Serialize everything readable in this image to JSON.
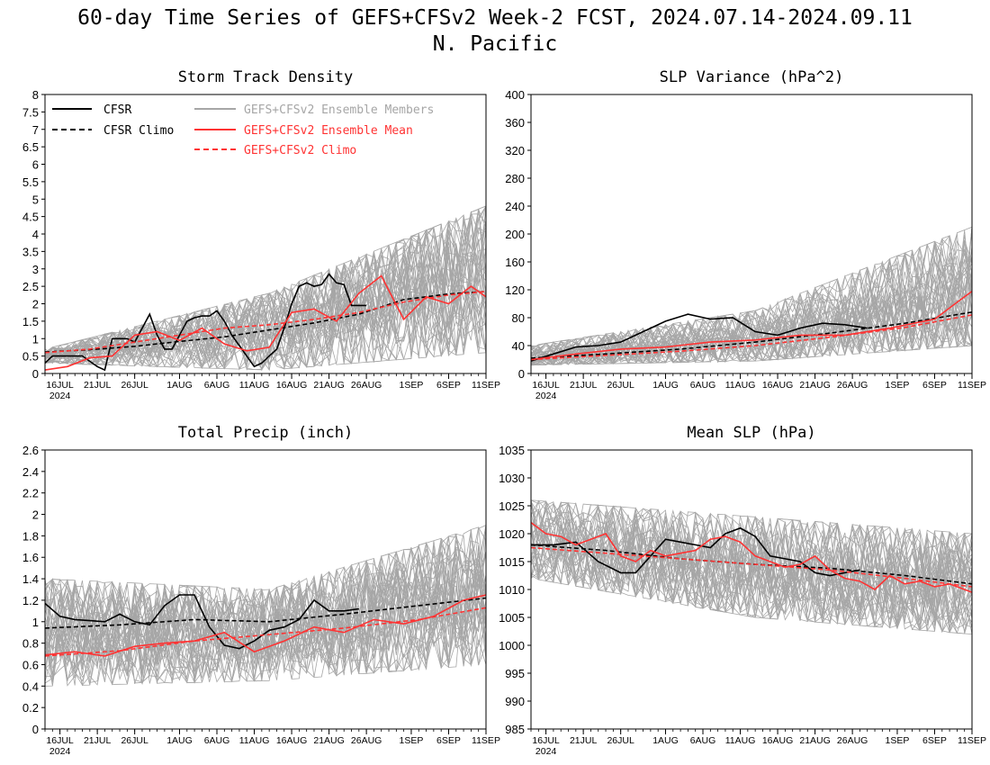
{
  "title_line1": "60-day Time Series of GEFS+CFSv2 Week-2 FCST, 2024.07.14-2024.09.11",
  "title_line2": "N. Pacific",
  "colors": {
    "cfsr": "#000000",
    "members": "#a6a6a6",
    "mean": "#ff3333"
  },
  "legend": {
    "cfsr": "CFSR",
    "cfsr_climo": "CFSR Climo",
    "members": "GEFS+CFSv2 Ensemble Members",
    "mean": "GEFS+CFSv2 Ensemble Mean",
    "climo": "GEFS+CFSv2 Climo"
  },
  "x_ticks": [
    "16JUL",
    "21JUL",
    "26JUL",
    "1AUG",
    "6AUG",
    "11AUG",
    "16AUG",
    "21AUG",
    "26AUG",
    "1SEP",
    "6SEP",
    "11SEP"
  ],
  "x_year": "2024",
  "chart_data": [
    {
      "type": "line",
      "title": "Storm Track Density",
      "x_range": [
        "2024-07-14",
        "2024-09-11"
      ],
      "ylim": [
        0,
        8
      ],
      "y_ticks": [
        "0",
        "0.5",
        "1",
        "1.5",
        "2",
        "2.5",
        "3",
        "3.5",
        "4",
        "4.5",
        "5",
        "5.5",
        "6",
        "6.5",
        "7",
        "7.5",
        "8"
      ],
      "members_envelope": {
        "low": [
          0.3,
          0.1,
          0.6
        ],
        "high": [
          0.7,
          2.3,
          4.8
        ]
      },
      "series": [
        {
          "name": "CFSR",
          "style": "solid",
          "x_day": [
            0,
            1,
            3,
            5,
            7,
            8,
            9,
            10,
            11,
            12,
            13,
            14,
            15,
            16,
            17,
            18,
            19,
            20,
            21,
            22,
            23,
            24,
            25,
            26,
            27,
            28,
            29,
            30,
            31,
            32,
            33,
            34,
            35,
            36,
            37,
            38,
            39,
            40,
            41,
            42,
            43,
            44,
            45
          ],
          "values": [
            0.3,
            0.5,
            0.5,
            0.5,
            0.2,
            0.1,
            1.0,
            1.0,
            1.0,
            0.9,
            1.3,
            1.7,
            1.1,
            0.7,
            0.7,
            1.1,
            1.5,
            1.6,
            1.65,
            1.65,
            1.8,
            1.5,
            1.1,
            0.8,
            0.5,
            0.2,
            0.3,
            0.5,
            0.7,
            1.3,
            2.0,
            2.5,
            2.6,
            2.5,
            2.55,
            2.85,
            2.6,
            2.55,
            1.95,
            1.95,
            1.95,
            null,
            null
          ]
        },
        {
          "name": "CFSR Climo",
          "style": "dashed",
          "x_day": [
            0,
            6,
            12,
            18,
            24,
            30,
            36,
            42,
            48,
            54,
            59
          ],
          "values": [
            0.62,
            0.68,
            0.78,
            0.92,
            1.05,
            1.25,
            1.45,
            1.7,
            2.12,
            2.28,
            2.35
          ]
        },
        {
          "name": "GEFS+CFSv2 Ensemble Mean",
          "style": "solid",
          "x_day": [
            0,
            3,
            6,
            9,
            12,
            15,
            18,
            21,
            24,
            27,
            30,
            33,
            36,
            39,
            42,
            45,
            48,
            51,
            54,
            57,
            59
          ],
          "values": [
            0.1,
            0.2,
            0.45,
            0.5,
            1.1,
            1.2,
            0.95,
            1.3,
            0.85,
            0.65,
            0.75,
            1.75,
            1.85,
            1.5,
            2.3,
            2.8,
            1.55,
            2.2,
            2.0,
            2.5,
            2.2
          ]
        },
        {
          "name": "GEFS+CFSv2 Climo",
          "style": "dashed",
          "x_day": [
            0,
            6,
            12,
            18,
            24,
            30,
            36,
            42,
            48,
            54,
            59
          ],
          "values": [
            0.6,
            0.7,
            0.9,
            1.1,
            1.3,
            1.4,
            1.55,
            1.75,
            2.05,
            2.25,
            2.35
          ]
        }
      ]
    },
    {
      "type": "line",
      "title": "SLP Variance (hPa^2)",
      "x_range": [
        "2024-07-14",
        "2024-09-11"
      ],
      "ylim": [
        0,
        400
      ],
      "y_ticks": [
        "0",
        "40",
        "80",
        "120",
        "160",
        "200",
        "240",
        "280",
        "320",
        "360",
        "400"
      ],
      "members_envelope": {
        "low": [
          12,
          18,
          40
        ],
        "high": [
          40,
          90,
          210
        ]
      },
      "series": [
        {
          "name": "CFSR",
          "style": "solid",
          "x_day": [
            0,
            3,
            6,
            9,
            12,
            15,
            18,
            21,
            24,
            27,
            30,
            33,
            36,
            39,
            42,
            45
          ],
          "values": [
            18,
            28,
            38,
            40,
            45,
            60,
            75,
            85,
            78,
            80,
            60,
            55,
            65,
            72,
            70,
            65
          ]
        },
        {
          "name": "CFSR Climo",
          "style": "dashed",
          "x_day": [
            0,
            10,
            20,
            30,
            40,
            50,
            59
          ],
          "values": [
            22,
            28,
            35,
            45,
            58,
            72,
            88
          ]
        },
        {
          "name": "GEFS+CFSv2 Ensemble Mean",
          "style": "solid",
          "x_day": [
            0,
            6,
            12,
            18,
            24,
            30,
            36,
            42,
            48,
            54,
            57,
            59
          ],
          "values": [
            20,
            28,
            35,
            38,
            45,
            48,
            55,
            55,
            65,
            78,
            102,
            118
          ]
        },
        {
          "name": "GEFS+CFSv2 Climo",
          "style": "dashed",
          "x_day": [
            0,
            10,
            20,
            30,
            40,
            50,
            59
          ],
          "values": [
            20,
            26,
            32,
            40,
            52,
            66,
            84
          ]
        }
      ]
    },
    {
      "type": "line",
      "title": "Total Precip (inch)",
      "x_range": [
        "2024-07-14",
        "2024-09-11"
      ],
      "ylim": [
        0,
        2.6
      ],
      "y_ticks": [
        "0",
        "0.2",
        "0.4",
        "0.6",
        "0.8",
        "1",
        "1.2",
        "1.4",
        "1.6",
        "1.8",
        "2",
        "2.2",
        "2.4",
        "2.6"
      ],
      "members_envelope": {
        "low": [
          0.4,
          0.45,
          0.6
        ],
        "high": [
          1.4,
          1.3,
          1.9
        ]
      },
      "series": [
        {
          "name": "CFSR",
          "style": "solid",
          "x_day": [
            0,
            2,
            4,
            6,
            8,
            10,
            12,
            14,
            16,
            18,
            20,
            22,
            24,
            26,
            28,
            30,
            32,
            34,
            36,
            38,
            40,
            42,
            44,
            46
          ],
          "values": [
            1.17,
            1.05,
            1.02,
            1.01,
            1.0,
            1.07,
            1.0,
            0.97,
            1.15,
            1.25,
            1.25,
            0.95,
            0.78,
            0.75,
            0.82,
            0.92,
            0.95,
            1.02,
            1.2,
            1.1,
            1.1,
            1.12,
            null,
            null
          ]
        },
        {
          "name": "CFSR Climo",
          "style": "dashed",
          "x_day": [
            0,
            10,
            20,
            30,
            40,
            50,
            59
          ],
          "values": [
            0.94,
            0.97,
            1.02,
            1.0,
            1.07,
            1.15,
            1.22
          ]
        },
        {
          "name": "GEFS+CFSv2 Ensemble Mean",
          "style": "solid",
          "x_day": [
            0,
            4,
            8,
            12,
            16,
            20,
            24,
            28,
            32,
            36,
            40,
            44,
            48,
            52,
            56,
            59
          ],
          "values": [
            0.69,
            0.72,
            0.68,
            0.77,
            0.8,
            0.82,
            0.9,
            0.72,
            0.82,
            0.95,
            0.9,
            1.02,
            0.98,
            1.05,
            1.2,
            1.25
          ]
        },
        {
          "name": "GEFS+CFSv2 Climo",
          "style": "dashed",
          "x_day": [
            0,
            10,
            20,
            30,
            40,
            50,
            59
          ],
          "values": [
            0.68,
            0.73,
            0.82,
            0.88,
            0.94,
            1.02,
            1.13
          ]
        }
      ]
    },
    {
      "type": "line",
      "title": "Mean SLP (hPa)",
      "x_range": [
        "2024-07-14",
        "2024-09-11"
      ],
      "ylim": [
        985,
        1035
      ],
      "y_ticks": [
        "985",
        "990",
        "995",
        "1000",
        "1005",
        "1010",
        "1015",
        "1020",
        "1025",
        "1030",
        "1035"
      ],
      "members_envelope": {
        "low": [
          1012,
          1005,
          1002
        ],
        "high": [
          1026,
          1023,
          1020
        ]
      },
      "series": [
        {
          "name": "CFSR",
          "style": "solid",
          "x_day": [
            0,
            3,
            6,
            9,
            12,
            14,
            16,
            18,
            20,
            22,
            24,
            26,
            28,
            30,
            32,
            34,
            36,
            38,
            40,
            42,
            44,
            46
          ],
          "values": [
            1018,
            1018,
            1018.5,
            1015,
            1013,
            1013,
            1016,
            1019,
            1018.5,
            1018,
            1017.5,
            1020,
            1021,
            1019.5,
            1016,
            1015.5,
            1015,
            1013,
            1012.5,
            1013,
            1013.5,
            null
          ]
        },
        {
          "name": "CFSR Climo",
          "style": "dashed",
          "x_day": [
            0,
            10,
            20,
            30,
            40,
            50,
            59
          ],
          "values": [
            1018,
            1017,
            1015.5,
            1014.5,
            1013.8,
            1012.5,
            1011
          ]
        },
        {
          "name": "GEFS+CFSv2 Ensemble Mean",
          "style": "solid",
          "x_day": [
            0,
            2,
            4,
            6,
            8,
            10,
            12,
            14,
            16,
            18,
            20,
            22,
            24,
            26,
            28,
            30,
            32,
            34,
            36,
            38,
            40,
            42,
            44,
            46,
            48,
            50,
            52,
            54,
            56,
            58,
            59
          ],
          "values": [
            1022,
            1020,
            1019.5,
            1018,
            1019,
            1020,
            1016,
            1015,
            1017,
            1016,
            1016.5,
            1017,
            1019,
            1019.5,
            1018.5,
            1016,
            1015,
            1014,
            1014.5,
            1016,
            1013.5,
            1012,
            1011.5,
            1010,
            1012.5,
            1011,
            1011.5,
            1010.5,
            1011,
            1010,
            1009.5
          ]
        },
        {
          "name": "GEFS+CFSv2 Climo",
          "style": "dashed",
          "x_day": [
            0,
            10,
            20,
            30,
            40,
            50,
            59
          ],
          "values": [
            1017.5,
            1016.5,
            1015.5,
            1014.5,
            1013.5,
            1012,
            1010.5
          ]
        }
      ]
    }
  ]
}
